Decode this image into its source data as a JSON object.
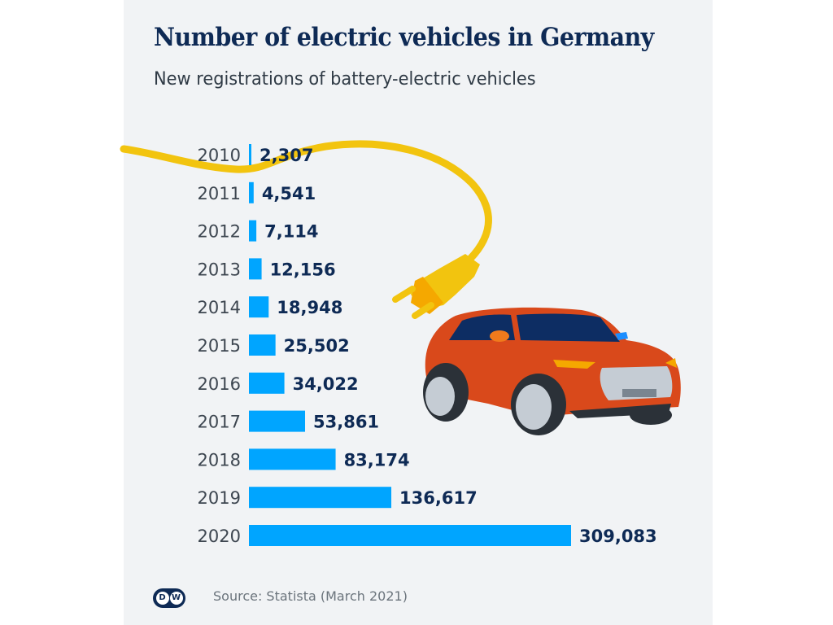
{
  "header": {
    "title": "Number of electric vehicles in Germany",
    "subtitle": "New registrations of battery-electric vehicles"
  },
  "footer": {
    "logo_text_left": "D",
    "logo_text_right": "W",
    "source": "Source: Statista (March 2021)"
  },
  "colors": {
    "bar": "#00a5ff",
    "value_label": "#0e2a55",
    "year_label": "#3d4650",
    "background": "#f1f3f5",
    "cable": "#f2c40f",
    "car_body": "#d9491b"
  },
  "chart_data": {
    "type": "bar",
    "orientation": "horizontal",
    "title": "Number of electric vehicles in Germany",
    "subtitle": "New registrations of battery-electric vehicles",
    "xlabel": "",
    "ylabel": "",
    "categories": [
      "2010",
      "2011",
      "2012",
      "2013",
      "2014",
      "2015",
      "2016",
      "2017",
      "2018",
      "2019",
      "2020"
    ],
    "values": [
      2307,
      4541,
      7114,
      12156,
      18948,
      25502,
      34022,
      53861,
      83174,
      136617,
      309083
    ],
    "value_labels": [
      "2,307",
      "4,541",
      "7,114",
      "12,156",
      "18,948",
      "25,502",
      "34,022",
      "53,861",
      "83,174",
      "136,617",
      "309,083"
    ],
    "xlim": [
      0,
      309083
    ],
    "grid": false,
    "legend": "none",
    "source": "Source: Statista (March 2021)"
  }
}
